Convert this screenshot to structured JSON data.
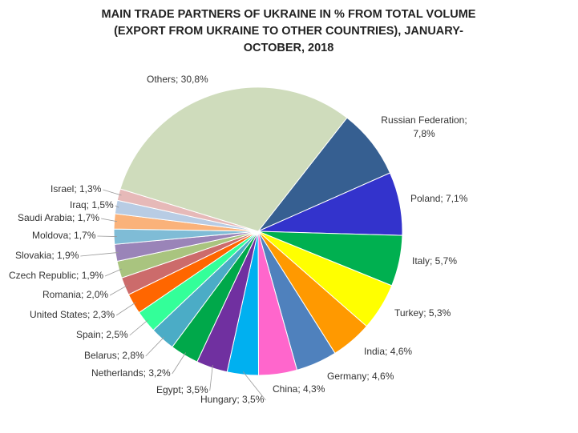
{
  "chart_data": {
    "type": "pie",
    "title": "MAIN TRADE PARTNERS OF UKRAINE IN % FROM TOTAL VOLUME (EXPORT FROM UKRAINE TO OTHER COUNTRIES), JANUARY-OCTOBER, 2018",
    "values": [
      7.8,
      7.1,
      5.7,
      5.3,
      4.6,
      4.6,
      4.3,
      3.5,
      3.5,
      3.2,
      2.8,
      2.5,
      2.3,
      2.0,
      1.9,
      1.9,
      1.7,
      1.7,
      1.5,
      1.3,
      30.8
    ],
    "value_labels": [
      "Russian Federation; 7,8%",
      "Poland; 7,1%",
      "Italy; 5,7%",
      "Turkey; 5,3%",
      "India; 4,6%",
      "Germany; 4,6%",
      "China; 4,3%",
      "Hungary; 3,5%",
      "Egypt; 3,5%",
      "Netherlands; 3,2%",
      "Belarus; 2,8%",
      "Spain; 2,5%",
      "United States; 2,3%",
      "Romania; 2,0%",
      "Czech Republic; 1,9%",
      "Slovakia; 1,9%",
      "Moldova; 1,7%",
      "Saudi Arabia; 1,7%",
      "Iraq; 1,5%",
      "Israel; 1,3%",
      "Others; 30,8%"
    ],
    "colors": [
      "#365f91",
      "#3333cc",
      "#00b050",
      "#ffff00",
      "#ff9900",
      "#4f81bd",
      "#ff66cc",
      "#00b0f0",
      "#7030a0",
      "#00a84a",
      "#4bacc6",
      "#33ff99",
      "#ff6600",
      "#cc6b6b",
      "#a9c47f",
      "#9a84b8",
      "#7fbcd6",
      "#fab27a",
      "#b8cce4",
      "#e6b9b8",
      "#cfdcbc"
    ]
  }
}
